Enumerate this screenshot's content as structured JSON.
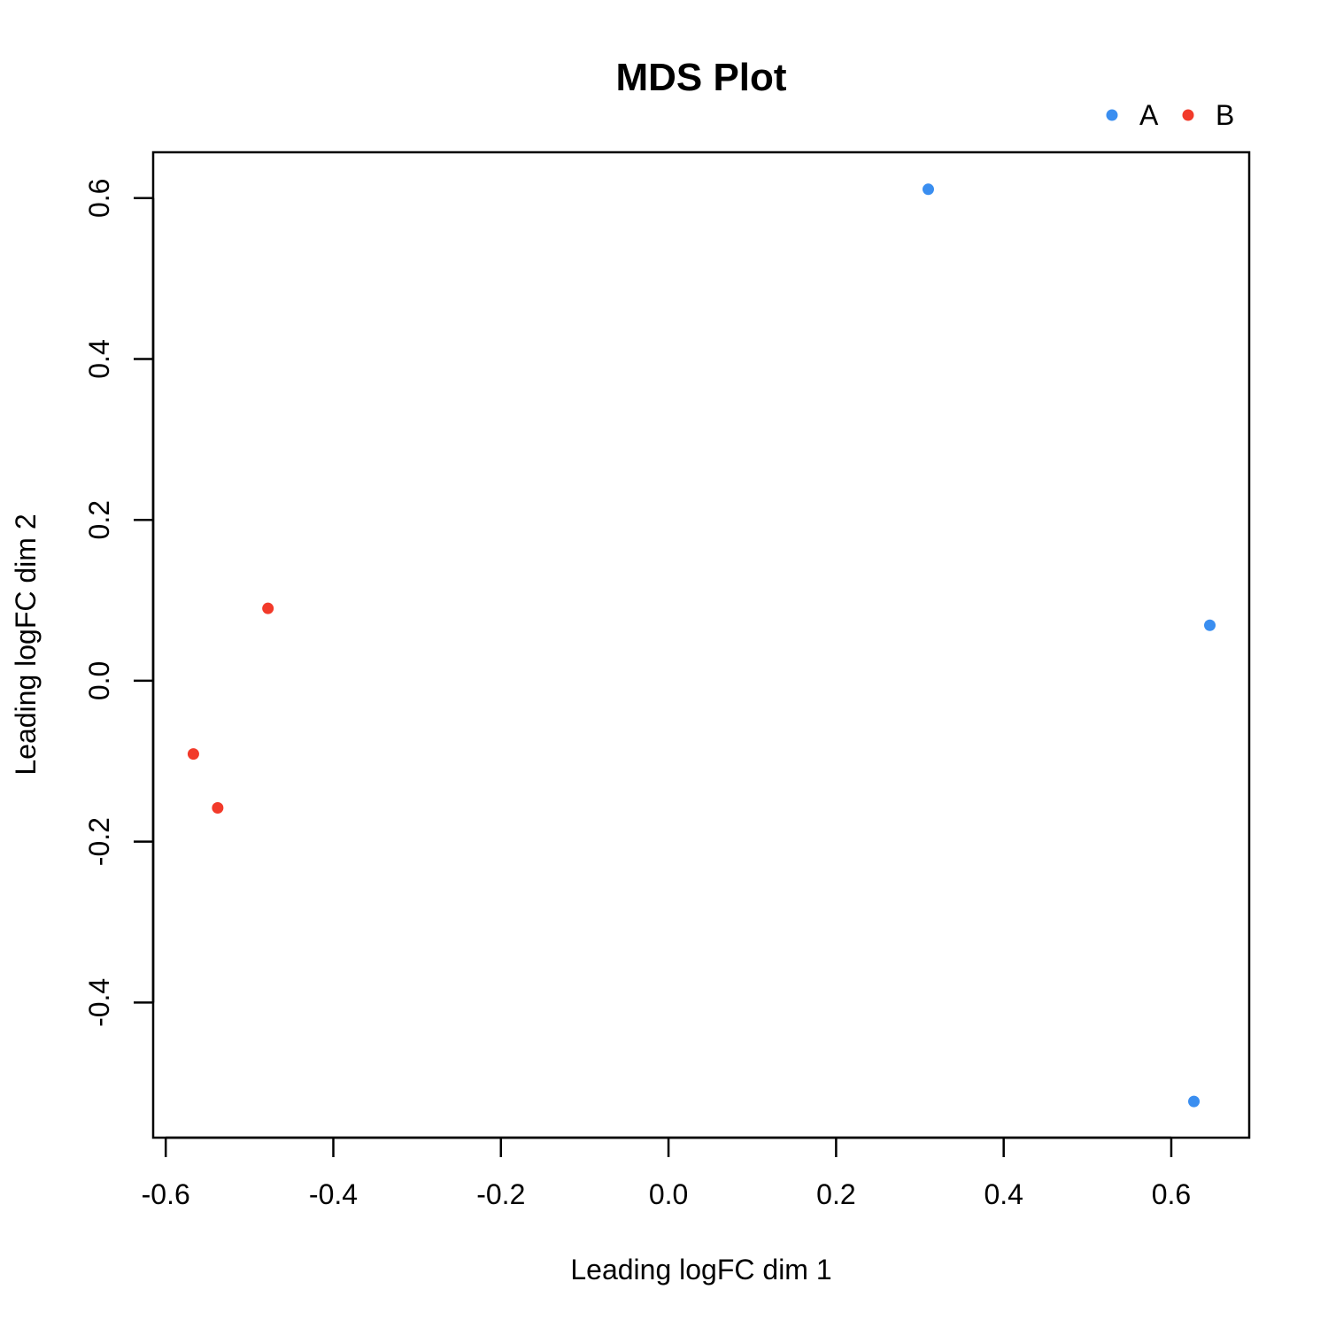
{
  "chart_data": {
    "type": "scatter",
    "title": "MDS Plot",
    "xlabel": "Leading logFC dim 1",
    "ylabel": "Leading logFC dim 2",
    "xlim": [
      -0.615,
      0.693
    ],
    "ylim": [
      -0.568,
      0.657
    ],
    "xticks": [
      -0.6,
      -0.4,
      -0.2,
      0.0,
      0.2,
      0.4,
      0.6
    ],
    "xtick_labels": [
      "-0.6",
      "-0.4",
      "-0.2",
      "0.0",
      "0.2",
      "0.4",
      "0.6"
    ],
    "yticks": [
      -0.4,
      -0.2,
      0.0,
      0.2,
      0.4,
      0.6
    ],
    "ytick_labels": [
      "-0.4",
      "-0.2",
      "0.0",
      "0.2",
      "0.4",
      "0.6"
    ],
    "grid": false,
    "legend_position": "top-right",
    "series": [
      {
        "name": "A",
        "color": "#3A8EF0",
        "points": [
          [
            0.31,
            0.611
          ],
          [
            0.646,
            0.069
          ],
          [
            0.627,
            -0.523
          ]
        ]
      },
      {
        "name": "B",
        "color": "#F23A2A",
        "points": [
          [
            -0.478,
            0.09
          ],
          [
            -0.567,
            -0.091
          ],
          [
            -0.538,
            -0.158
          ]
        ]
      }
    ]
  }
}
